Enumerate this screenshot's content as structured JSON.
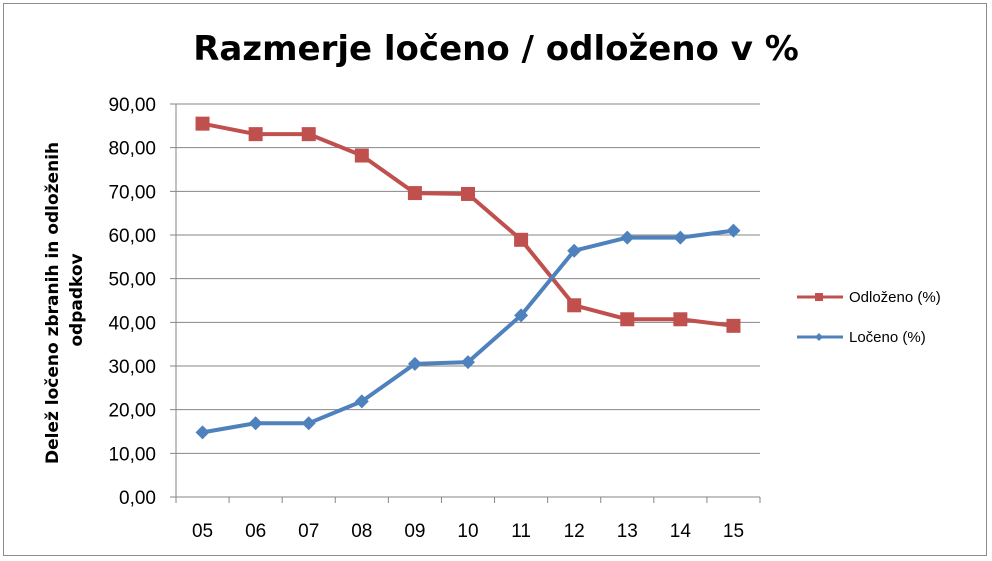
{
  "chart_data": {
    "type": "line",
    "title": "Razmerje ločeno / odloženo v %",
    "ylabel_lines": [
      "Delež ločeno zbranih in odloženih",
      "odpadkov"
    ],
    "xlabel": "",
    "categories": [
      "05",
      "06",
      "07",
      "08",
      "09",
      "10",
      "11",
      "12",
      "13",
      "14",
      "15"
    ],
    "ylim": [
      0,
      90
    ],
    "ytick_step": 10,
    "ytick_labels": [
      "0,00",
      "10,00",
      "20,00",
      "30,00",
      "40,00",
      "50,00",
      "60,00",
      "70,00",
      "80,00",
      "90,00"
    ],
    "grid": true,
    "legend_position": "right",
    "series": [
      {
        "name": "Odloženo  (%)",
        "color": "#c0504d",
        "marker": "square",
        "values": [
          85.5,
          83.1,
          83.1,
          78.2,
          69.6,
          69.4,
          58.9,
          43.9,
          40.7,
          40.7,
          39.2
        ]
      },
      {
        "name": "Ločeno (%)",
        "color": "#4f81bd",
        "marker": "diamond",
        "values": [
          14.8,
          16.9,
          16.9,
          21.9,
          30.5,
          30.9,
          41.6,
          56.4,
          59.4,
          59.4,
          61.0
        ]
      }
    ]
  }
}
